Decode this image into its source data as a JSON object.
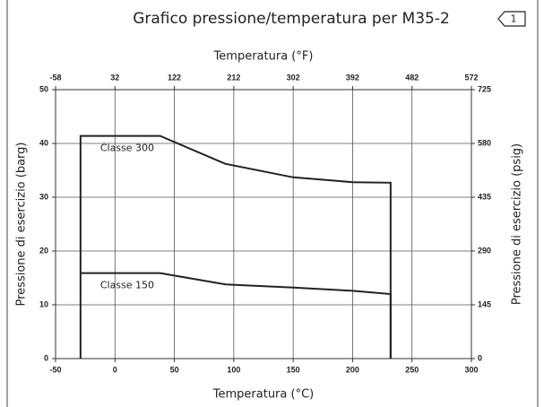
{
  "chart_data": {
    "type": "line",
    "title": "Grafico pressione/temperatura per M35-2",
    "page_badge": "1",
    "xlabel": "Temperatura (°C)",
    "x2label": "Temperatura (°F)",
    "ylabel": "Pressione di esercizio (barg)",
    "y2label": "Pressione di esercizio (psig)",
    "xlim": [
      -50,
      300
    ],
    "xticks": [
      -50,
      0,
      50,
      100,
      150,
      200,
      250,
      300
    ],
    "x2lim": [
      -58,
      572
    ],
    "x2ticks": [
      -58,
      32,
      122,
      212,
      302,
      392,
      482,
      572
    ],
    "ylim": [
      0,
      50
    ],
    "yticks": [
      0,
      10,
      20,
      30,
      40,
      50
    ],
    "y2lim": [
      0,
      725
    ],
    "y2ticks": [
      0,
      145,
      290,
      435,
      580,
      725
    ],
    "grid": true,
    "series": [
      {
        "name": "Classe 300",
        "color": "#222222",
        "x": [
          -29,
          -29,
          38,
          93,
          150,
          200,
          232,
          232
        ],
        "values": [
          0,
          41.4,
          41.4,
          36.2,
          33.7,
          32.8,
          32.7,
          0
        ]
      },
      {
        "name": "Classe 150",
        "color": "#222222",
        "x": [
          -29,
          38,
          93,
          150,
          200,
          232,
          232
        ],
        "values": [
          15.9,
          15.9,
          13.8,
          13.2,
          12.6,
          12.0,
          0
        ]
      }
    ]
  }
}
